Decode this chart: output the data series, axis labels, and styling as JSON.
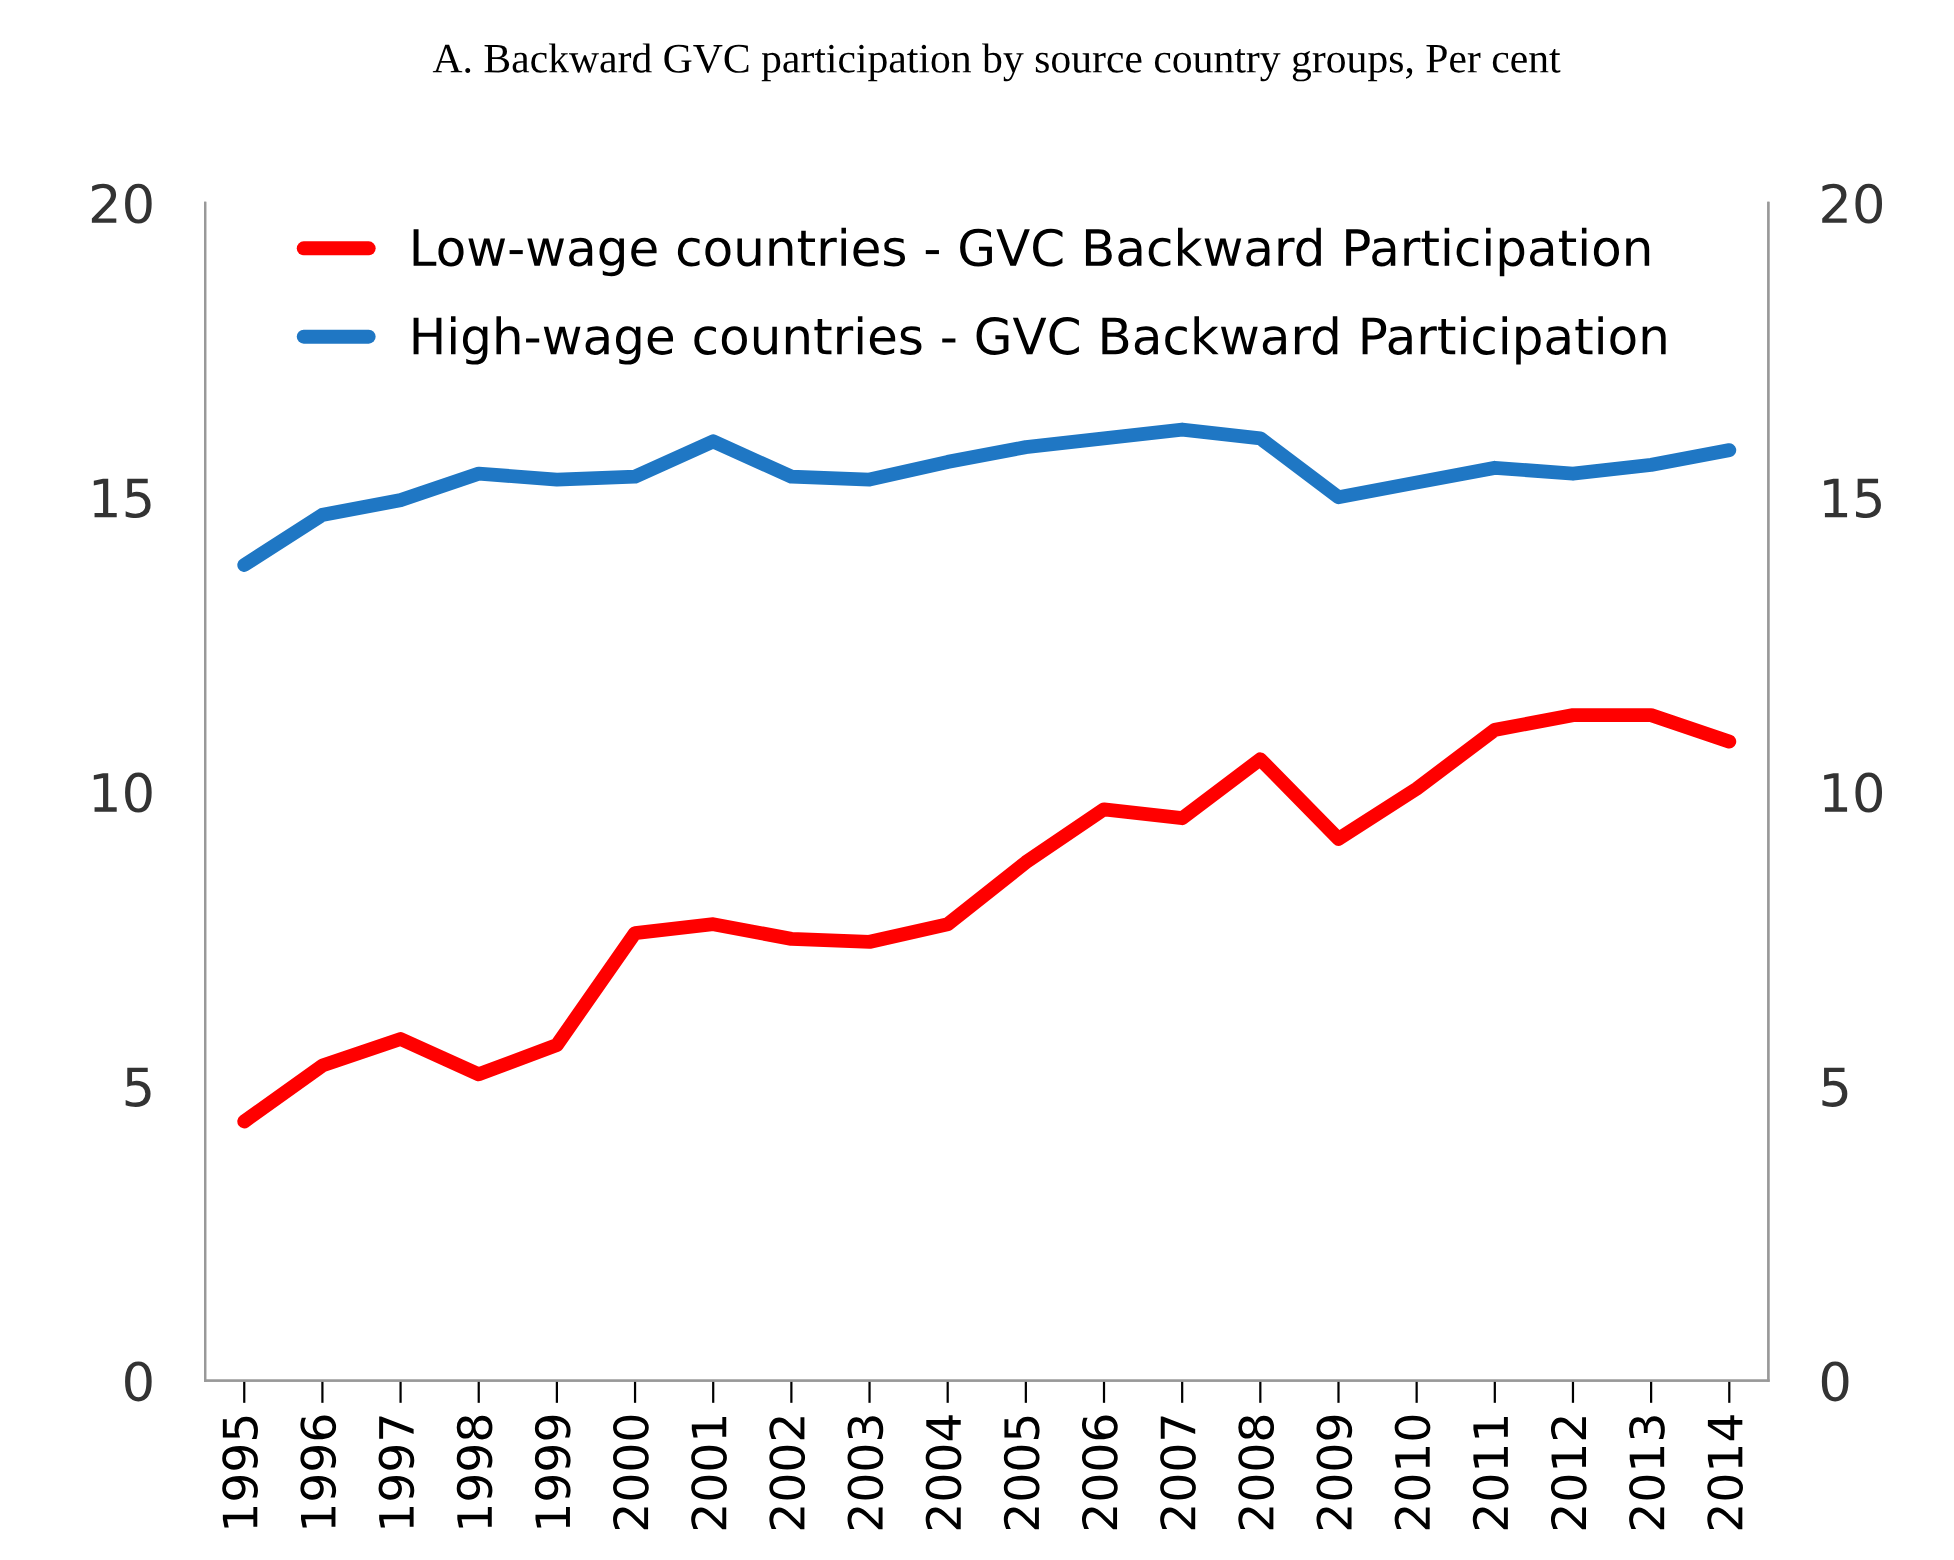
{
  "chart_data": {
    "type": "line",
    "title": "A. Backward GVC participation by source country groups, Per cent",
    "categories": [
      "1995",
      "1996",
      "1997",
      "1998",
      "1999",
      "2000",
      "2001",
      "2002",
      "2003",
      "2004",
      "2005",
      "2006",
      "2007",
      "2008",
      "2009",
      "2010",
      "2011",
      "2012",
      "2013",
      "2014"
    ],
    "series": [
      {
        "name": "Low-wage countries - GVC Backward Participation",
        "color": "#ff0000",
        "values": [
          4.4,
          5.35,
          5.8,
          5.2,
          5.7,
          7.6,
          7.75,
          7.5,
          7.45,
          7.75,
          8.8,
          9.7,
          9.55,
          10.55,
          9.2,
          10.05,
          11.05,
          11.3,
          11.3,
          10.85
        ]
      },
      {
        "name": "High-wage countries - GVC Backward Participation",
        "color": "#1f77c4",
        "values": [
          13.85,
          14.7,
          14.95,
          15.4,
          15.3,
          15.35,
          15.95,
          15.35,
          15.3,
          15.6,
          15.85,
          16.0,
          16.15,
          16.0,
          15.0,
          15.25,
          15.5,
          15.4,
          15.55,
          15.8
        ]
      }
    ],
    "ylim": [
      0,
      20
    ],
    "yticks": [
      0,
      5,
      10,
      15,
      20
    ],
    "y2lim": [
      0,
      20
    ],
    "y2ticks": [
      0,
      5,
      10,
      15,
      20
    ],
    "grid": false,
    "legend": "top",
    "marker": "none",
    "line_style": "solid"
  }
}
